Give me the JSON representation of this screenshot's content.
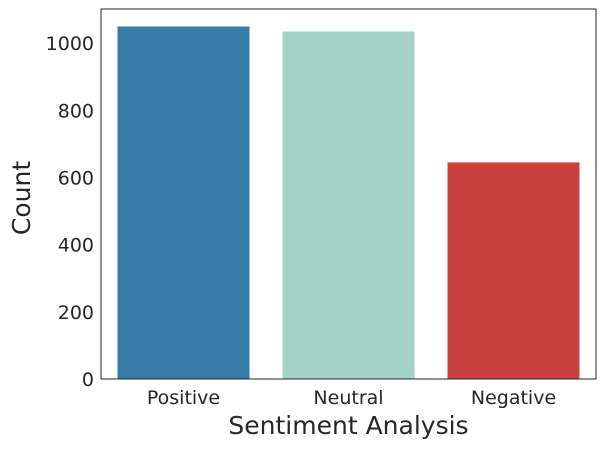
{
  "chart_data": {
    "type": "bar",
    "categories": [
      "Positive",
      "Neutral",
      "Negative"
    ],
    "values": [
      1050,
      1035,
      645
    ],
    "colors": [
      "#3a7ca8",
      "#a3d1c5",
      "#c9403c"
    ],
    "xlabel": "Sentiment Analysis",
    "ylabel": "Count",
    "ylim": [
      0,
      1102
    ],
    "yticks": [
      0,
      200,
      400,
      600,
      800,
      1000
    ],
    "grid": false
  }
}
